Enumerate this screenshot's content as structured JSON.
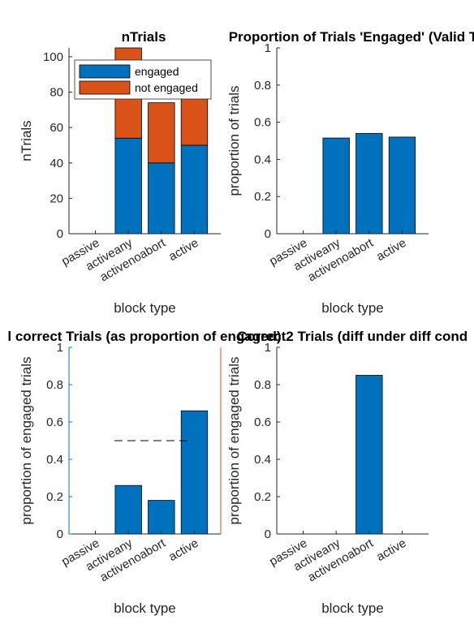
{
  "colors": {
    "blue": "#0072BD",
    "orange": "#D95319",
    "axis": "#262626",
    "ylabel_blue": "#0072BD"
  },
  "chart_data": [
    {
      "type": "bar",
      "stacked": true,
      "title": "nTrials",
      "xlabel": "block type",
      "ylabel": "nTrials",
      "categories": [
        "passive",
        "activeany",
        "activenoabort",
        "active"
      ],
      "series": [
        {
          "name": "engaged",
          "color": "#0072BD",
          "values": [
            0,
            54,
            40,
            50
          ]
        },
        {
          "name": "not engaged",
          "color": "#D95319",
          "values": [
            0,
            51,
            34,
            46
          ]
        }
      ],
      "ylim": [
        0,
        105
      ],
      "yticks": [
        0,
        20,
        40,
        60,
        80,
        100
      ],
      "legend": "top-left",
      "grid": false
    },
    {
      "type": "bar",
      "title": "Proportion of Trials 'Engaged' (Valid T",
      "xlabel": "block type",
      "ylabel": "proportion of trials",
      "categories": [
        "passive",
        "activeany",
        "activenoabort",
        "active"
      ],
      "values": [
        0,
        0.515,
        0.54,
        0.52
      ],
      "ylim": [
        0,
        1
      ],
      "yticks": [
        0,
        0.2,
        0.4,
        0.6,
        0.8,
        1
      ],
      "grid": false
    },
    {
      "type": "bar",
      "title": "l correct Trials (as proportion of engaged)",
      "xlabel": "block type",
      "ylabel": "proportion of engaged trials",
      "categories": [
        "passive",
        "activeany",
        "activenoabort",
        "active"
      ],
      "values": [
        0,
        0.26,
        0.18,
        0.66
      ],
      "reference_line": {
        "y": 0.5,
        "x_from": "activeany",
        "x_to": "active",
        "style": "dashed"
      },
      "ylim": [
        0,
        1
      ],
      "yticks": [
        0,
        0.2,
        0.4,
        0.6,
        0.8,
        1
      ],
      "grid": false
    },
    {
      "type": "bar",
      "title": "Correct2 Trials (diff under diff cond",
      "xlabel": "block type",
      "ylabel": "proportion of engaged trials",
      "categories": [
        "passive",
        "activeany",
        "activenoabort",
        "active"
      ],
      "values": [
        0,
        0,
        0.85,
        0
      ],
      "ylim": [
        0,
        1
      ],
      "yticks": [
        0,
        0.2,
        0.4,
        0.6,
        0.8,
        1
      ],
      "grid": false
    }
  ]
}
